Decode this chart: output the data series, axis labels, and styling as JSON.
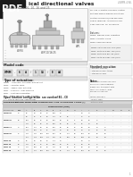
{
  "bg_color": "#ffffff",
  "pdf_bg": "#1a1a1a",
  "pdf_text_color": "#ffffff",
  "mid_gray": "#888888",
  "dark_gray": "#222222",
  "light_gray": "#cccccc",
  "very_light_gray": "#f0f0f0",
  "diagram_border": "#999999",
  "title_text": "ical directional valves",
  "subtitle_text": "ISO 4401 sizes 06, 10, 16 and 25",
  "ref_text": "4/WMM-4/WL",
  "section_bg": "#e8e8e8",
  "table_header_bg": "#d0d0d0",
  "blue_line": "#3366cc"
}
